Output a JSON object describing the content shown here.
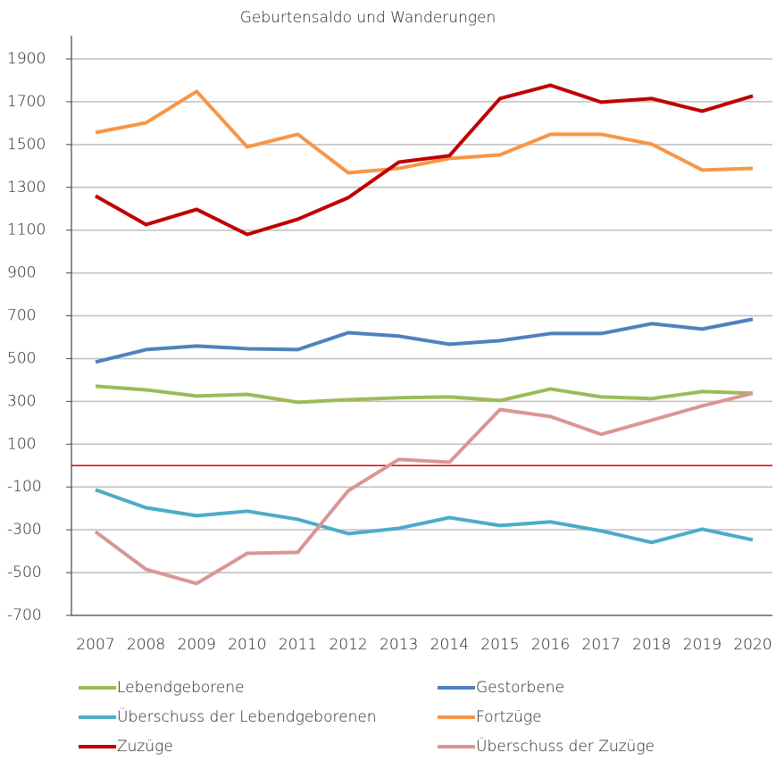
{
  "chart_data": {
    "type": "line",
    "title": "Geburtensaldo und Wanderungen",
    "categories": [
      "2007",
      "2008",
      "2009",
      "2010",
      "2011",
      "2012",
      "2013",
      "2014",
      "2015",
      "2016",
      "2017",
      "2018",
      "2019",
      "2020"
    ],
    "series": [
      {
        "name": "Lebendgeborene",
        "color": "#9bbb59",
        "values": [
          371,
          354,
          325,
          333,
          296,
          308,
          317,
          321,
          304,
          358,
          321,
          313,
          346,
          338
        ]
      },
      {
        "name": "Gestorbene",
        "color": "#4f81bd",
        "values": [
          484,
          542,
          559,
          546,
          542,
          621,
          605,
          567,
          584,
          617,
          617,
          663,
          638,
          684
        ]
      },
      {
        "name": "Überschuss der Lebendgeborenen",
        "color": "#4bacc6",
        "values": [
          -113,
          -197,
          -234,
          -213,
          -251,
          -318,
          -293,
          -243,
          -280,
          -263,
          -305,
          -359,
          -297,
          -347
        ]
      },
      {
        "name": "Fortzüge",
        "color": "#f79646",
        "values": [
          1556,
          1602,
          1748,
          1489,
          1548,
          1368,
          1389,
          1435,
          1452,
          1548,
          1548,
          1502,
          1381,
          1389
        ]
      },
      {
        "name": "Zuzüge",
        "color": "#c00000",
        "values": [
          1260,
          1126,
          1197,
          1080,
          1151,
          1252,
          1418,
          1448,
          1715,
          1777,
          1698,
          1715,
          1656,
          1727
        ]
      },
      {
        "name": "Überschuss der Zuzüge",
        "color": "#d99694",
        "values": [
          -309,
          -485,
          -551,
          -410,
          -405,
          -117,
          29,
          16,
          262,
          229,
          146,
          212,
          279,
          338
        ]
      }
    ],
    "ylim": [
      -700,
      1900
    ],
    "yticks": [
      -700,
      -500,
      -300,
      -100,
      100,
      300,
      500,
      700,
      900,
      1100,
      1300,
      1500,
      1700,
      1900
    ],
    "grid": true,
    "reference_line": {
      "value": 0,
      "color": "#e00000"
    },
    "legend": "bottom"
  }
}
